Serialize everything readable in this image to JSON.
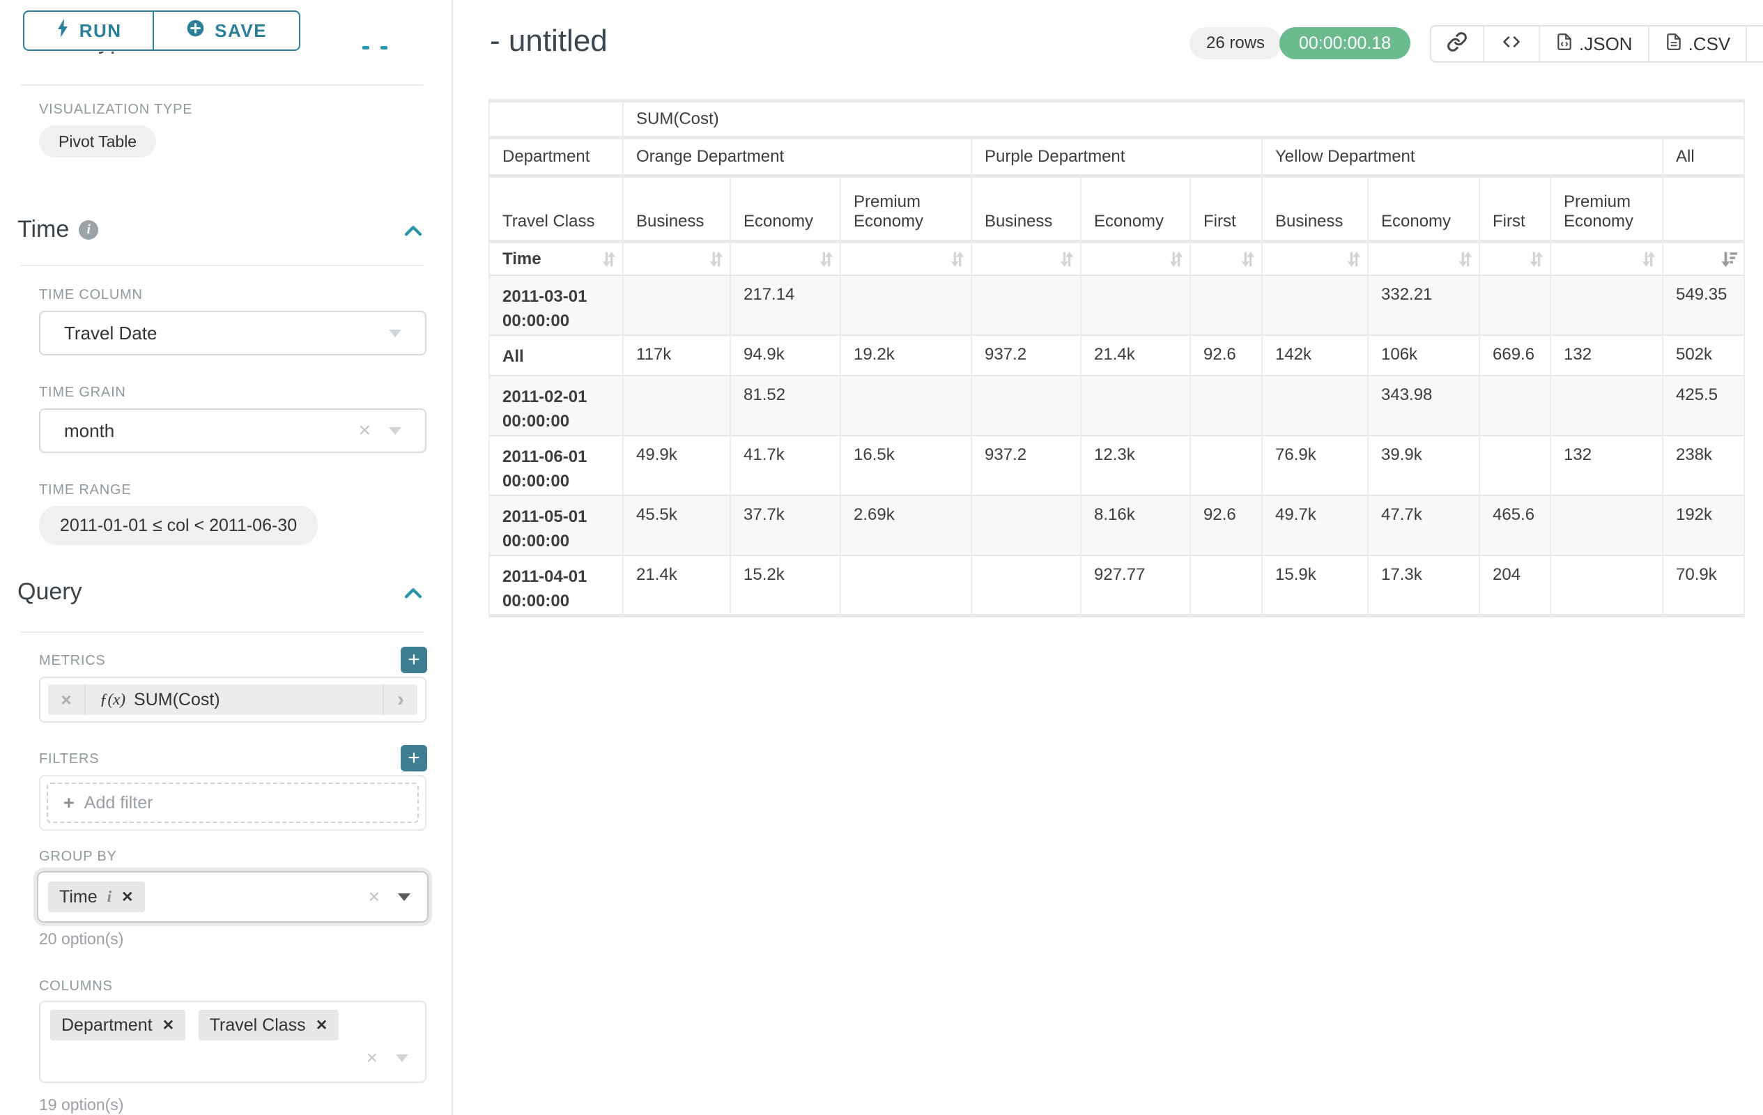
{
  "panel": {
    "run_label": "RUN",
    "save_label": "SAVE",
    "chart_type_heading": "Chart Type",
    "visualization_type_label": "VISUALIZATION TYPE",
    "visualization_type_value": "Pivot Table",
    "time": {
      "title": "Time",
      "time_column_label": "TIME COLUMN",
      "time_column_value": "Travel Date",
      "time_grain_label": "TIME GRAIN",
      "time_grain_value": "month",
      "time_range_label": "TIME RANGE",
      "time_range_value": "2011-01-01 ≤ col < 2011-06-30"
    },
    "query": {
      "title": "Query",
      "metrics_label": "METRICS",
      "metric_fx": "ƒ(x)",
      "metric_value": "SUM(Cost)",
      "filters_label": "FILTERS",
      "add_filter_label": "Add filter",
      "group_by_label": "GROUP BY",
      "group_by_chips": [
        {
          "label": "Time"
        }
      ],
      "group_by_options": "20 option(s)",
      "columns_label": "COLUMNS",
      "columns_chips": [
        {
          "label": "Department"
        },
        {
          "label": "Travel Class"
        }
      ],
      "columns_options": "19 option(s)"
    }
  },
  "header": {
    "title": "- untitled",
    "row_count": "26 rows",
    "timer": "00:00:00.18",
    "export_json_label": ".JSON",
    "export_csv_label": ".CSV"
  },
  "pivot_table": {
    "type": "table",
    "metric_header": "SUM(Cost)",
    "corner_labels": [
      "Department",
      "Travel Class",
      "Time"
    ],
    "col_groups": [
      {
        "label": "Orange Department",
        "cols": [
          "Business",
          "Economy",
          "Premium Economy"
        ]
      },
      {
        "label": "Purple Department",
        "cols": [
          "Business",
          "Economy",
          "First"
        ]
      },
      {
        "label": "Yellow Department",
        "cols": [
          "Business",
          "Economy",
          "First",
          "Premium Economy"
        ]
      },
      {
        "label": "All",
        "cols": [
          ""
        ]
      }
    ],
    "rows": [
      {
        "label": "2011-03-01 00:00:00",
        "values": [
          "",
          "217.14",
          "",
          "",
          "",
          "",
          "",
          "332.21",
          "",
          "",
          "549.35"
        ]
      },
      {
        "label": "All",
        "values": [
          "117k",
          "94.9k",
          "19.2k",
          "937.2",
          "21.4k",
          "92.6",
          "142k",
          "106k",
          "669.6",
          "132",
          "502k"
        ]
      },
      {
        "label": "2011-02-01 00:00:00",
        "values": [
          "",
          "81.52",
          "",
          "",
          "",
          "",
          "",
          "343.98",
          "",
          "",
          "425.5"
        ]
      },
      {
        "label": "2011-06-01 00:00:00",
        "values": [
          "49.9k",
          "41.7k",
          "16.5k",
          "937.2",
          "12.3k",
          "",
          "76.9k",
          "39.9k",
          "",
          "132",
          "238k"
        ]
      },
      {
        "label": "2011-05-01 00:00:00",
        "values": [
          "45.5k",
          "37.7k",
          "2.69k",
          "",
          "8.16k",
          "92.6",
          "49.7k",
          "47.7k",
          "465.6",
          "",
          "192k"
        ]
      },
      {
        "label": "2011-04-01 00:00:00",
        "values": [
          "21.4k",
          "15.2k",
          "",
          "",
          "927.77",
          "",
          "15.9k",
          "17.3k",
          "204",
          "",
          "70.9k"
        ]
      }
    ],
    "colors": {
      "accent_teal": "#2b7f9b",
      "timer_green": "#6cbb8f",
      "add_button_teal": "#3d7e93"
    }
  }
}
